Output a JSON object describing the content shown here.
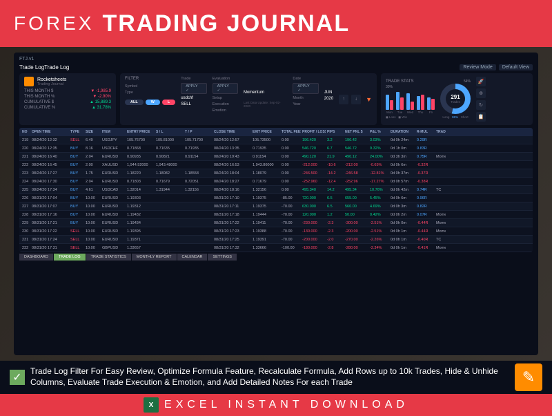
{
  "banner": {
    "forex": "FOREX",
    "title": "TRADING JOURNAL"
  },
  "titlebar": {
    "app": "FTJ.v1",
    "tradelog": "Trade Log",
    "review": "Review Mode",
    "default": "Default View"
  },
  "user": {
    "name": "Rocketsheets",
    "sub": "Trading Journal"
  },
  "stats": {
    "rows": [
      {
        "label": "THIS MONTH $",
        "val": "-1,985.9",
        "cls": "red"
      },
      {
        "label": "THIS MONTH %",
        "val": "-2.90%",
        "cls": "red"
      },
      {
        "label": "CUMULATIVE $",
        "val": "15,889.3",
        "cls": "green"
      },
      {
        "label": "CUMULATIVE %",
        "val": "31.78%",
        "cls": "green"
      }
    ]
  },
  "filter": {
    "title": "FILTER",
    "trade": "Trade",
    "evaluation": "Evaluation",
    "date": "Date",
    "apply": "APPLY ✓",
    "symbol_lbl": "Symbol",
    "symbol": "usdchf",
    "type_lbl": "Type",
    "type": "SELL",
    "setup_lbl": "Setup",
    "setup": "Momentum",
    "exec_lbl": "Execution",
    "emotion_lbl": "Emotion",
    "month_lbl": "Month",
    "month": "JUN",
    "year_lbl": "Year",
    "year": "2020",
    "all": "ALL",
    "w": "W",
    "l": "L",
    "update": "Last Data Update: Sep-02-2020"
  },
  "tradestats": {
    "title": "TRADE STATS",
    "pct": "30%",
    "pct2": "54%",
    "bars": [
      {
        "b": 22,
        "r": 14,
        "d": "Mon"
      },
      {
        "b": 26,
        "r": 18,
        "d": "Tue"
      },
      {
        "b": 24,
        "r": 12,
        "d": "Wed"
      },
      {
        "b": 20,
        "r": 22,
        "d": "Thu"
      },
      {
        "b": 18,
        "r": 16,
        "d": "Fri"
      }
    ],
    "donut_num": "291",
    "donut_lbl": "Trades",
    "long": "Long",
    "short": "Short",
    "winrate": "86%"
  },
  "columns": [
    "NO",
    "OPEN TIME",
    "TYPE",
    "SIZE",
    "ITEM",
    "ENTRY PRICE",
    "S / L",
    "T / P",
    "CLOSE TIME",
    "EXIT PRICE",
    "TOTAL FEES",
    "PROFIT / LOSS",
    "PIPS",
    "NET PNL $",
    "P&L %",
    "DURATION",
    "R-MUL",
    "TRADE SETUP"
  ],
  "rows": [
    {
      "no": "219",
      "ot": "08/24/20 12:32",
      "ty": "SELL",
      "tc": "red",
      "sz": "6.49",
      "it": "USDJPY",
      "ep": "105.76700",
      "sl": "105.81000",
      "tp": "105.71700",
      "ct": "08/24/20 12:57",
      "xp": "105.73500",
      "fe": "0.00",
      "pl": "196.420",
      "pc": "green",
      "pp": "3.2",
      "np": "196.42",
      "nc": "green",
      "pg": "3.03%",
      "pgc": "green",
      "du": "0d 0h 24m",
      "rm": "0.29R",
      "rmc": "blue",
      "ts": ""
    },
    {
      "no": "220",
      "ot": "08/24/20 12:35",
      "ty": "BUY",
      "tc": "blue",
      "sz": "8.16",
      "it": "USDCHF",
      "ep": "0.71868",
      "sl": "0.71635",
      "tp": "0.71935",
      "ct": "08/24/20 13:35",
      "xp": "0.71935",
      "fe": "0.00",
      "pl": "546.720",
      "pc": "green",
      "pp": "6.7",
      "np": "546.72",
      "nc": "green",
      "pg": "9.32%",
      "pgc": "green",
      "du": "0d 1h 0m",
      "rm": "0.83R",
      "rmc": "blue",
      "ts": ""
    },
    {
      "no": "221",
      "ot": "08/24/20 16:40",
      "ty": "BUY",
      "tc": "blue",
      "sz": "2.04",
      "it": "EURUSD",
      "ep": "0.90935",
      "sl": "0.90821",
      "tp": "0.91154",
      "ct": "08/24/20 19:43",
      "xp": "0.91154",
      "fe": "0.00",
      "pl": "490.120",
      "pc": "green",
      "pp": "21.9",
      "np": "490.12",
      "nc": "green",
      "pg": "24.00%",
      "pgc": "green",
      "du": "0d 3h 3m",
      "rm": "0.75R",
      "rmc": "blue",
      "ts": "Momentum"
    },
    {
      "no": "222",
      "ot": "08/24/20 16:45",
      "ty": "BUY",
      "tc": "blue",
      "sz": "2.00",
      "it": "XAUUSD",
      "ep": "1,944.92000",
      "sl": "1,943.48000",
      "tp": "",
      "ct": "08/24/20 16:53",
      "xp": "1,943.86000",
      "fe": "0.00",
      "pl": "-212.000",
      "pc": "red",
      "pp": "-10.6",
      "np": "-212.00",
      "nc": "red",
      "pg": "-0.65%",
      "pgc": "red",
      "du": "0d 0h 6m",
      "rm": "-0.32R",
      "rmc": "red",
      "ts": ""
    },
    {
      "no": "223",
      "ot": "08/24/20 17:27",
      "ty": "BUY",
      "tc": "blue",
      "sz": "1.75",
      "it": "EURUSD",
      "ep": "1.18220",
      "sl": "1.18082",
      "tp": "1.18558",
      "ct": "08/24/20 18:04",
      "xp": "1.18079",
      "fe": "0.00",
      "pl": "-246.500",
      "pc": "red",
      "pp": "-14.2",
      "np": "-246.58",
      "nc": "red",
      "pg": "-12.81%",
      "pgc": "red",
      "du": "0d 0h 37m",
      "rm": "-0.37R",
      "rmc": "red",
      "ts": ""
    },
    {
      "no": "224",
      "ot": "08/24/20 17:30",
      "ty": "BUY",
      "tc": "blue",
      "sz": "2.04",
      "it": "EURUSD",
      "ep": "0.71803",
      "sl": "0.71679",
      "tp": "0.72051",
      "ct": "08/24/20 18:27",
      "xp": "0.71679",
      "fe": "0.00",
      "pl": "-252.960",
      "pc": "red",
      "pp": "-12.4",
      "np": "-252.96",
      "nc": "red",
      "pg": "-17.27%",
      "pgc": "red",
      "du": "0d 0h 57m",
      "rm": "-0.38R",
      "rmc": "red",
      "ts": ""
    },
    {
      "no": "225",
      "ot": "08/24/20 17:34",
      "ty": "BUY",
      "tc": "blue",
      "sz": "4.61",
      "it": "USDCAD",
      "ep": "1.32014",
      "sl": "1.31944",
      "tp": "1.32156",
      "ct": "08/24/20 18:16",
      "xp": "1.32156",
      "fe": "0.00",
      "pl": "495.340",
      "pc": "green",
      "pp": "14.2",
      "np": "495.34",
      "nc": "green",
      "pg": "10.76%",
      "pgc": "green",
      "du": "0d 0h 42m",
      "rm": "0.74R",
      "rmc": "blue",
      "ts": "TC"
    },
    {
      "no": "226",
      "ot": "08/31/20 17:04",
      "ty": "BUY",
      "tc": "blue",
      "sz": "10.00",
      "it": "EURUSD",
      "ep": "1.19303",
      "sl": "",
      "tp": "",
      "ct": "08/31/20 17:10",
      "xp": "1.19375",
      "fe": "-85.00",
      "pl": "720.000",
      "pc": "green",
      "pp": "6.5",
      "np": "655.00",
      "nc": "green",
      "pg": "5.45%",
      "pgc": "green",
      "du": "0d 0h 6m",
      "rm": "0.96R",
      "rmc": "blue",
      "ts": ""
    },
    {
      "no": "227",
      "ot": "08/31/20 17:07",
      "ty": "BUY",
      "tc": "blue",
      "sz": "10.00",
      "it": "EURUSD",
      "ep": "1.19312",
      "sl": "",
      "tp": "",
      "ct": "08/31/20 17:11",
      "xp": "1.19375",
      "fe": "-70.00",
      "pl": "630.000",
      "pc": "green",
      "pp": "6.5",
      "np": "560.00",
      "nc": "green",
      "pg": "4.69%",
      "pgc": "green",
      "du": "0d 0h 3m",
      "rm": "0.82R",
      "rmc": "blue",
      "ts": ""
    },
    {
      "no": "228",
      "ot": "08/31/20 17:16",
      "ty": "BUY",
      "tc": "blue",
      "sz": "10.00",
      "it": "EURUSD",
      "ep": "1.19432",
      "sl": "",
      "tp": "",
      "ct": "08/31/20 17:18",
      "xp": "1.19444",
      "fe": "-70.00",
      "pl": "120.000",
      "pc": "green",
      "pp": "1.2",
      "np": "50.00",
      "nc": "green",
      "pg": "0.42%",
      "pgc": "green",
      "du": "0d 0h 2m",
      "rm": "0.07R",
      "rmc": "blue",
      "ts": "Momentum"
    },
    {
      "no": "229",
      "ot": "08/31/20 17:21",
      "ty": "BUY",
      "tc": "blue",
      "sz": "10.00",
      "it": "EURUSD",
      "ep": "1.19434",
      "sl": "",
      "tp": "",
      "ct": "08/31/20 17:22",
      "xp": "1.19411",
      "fe": "-70.00",
      "pl": "-230.000",
      "pc": "red",
      "pp": "-2.3",
      "np": "-300.00",
      "nc": "red",
      "pg": "-2.51%",
      "pgc": "red",
      "du": "0d 0h 0m",
      "rm": "-0.44R",
      "rmc": "red",
      "ts": "Momentum"
    },
    {
      "no": "230",
      "ot": "08/31/20 17:22",
      "ty": "SELL",
      "tc": "red",
      "sz": "10.00",
      "it": "EURUSD",
      "ep": "1.19395",
      "sl": "",
      "tp": "",
      "ct": "08/31/20 17:23",
      "xp": "1.19388",
      "fe": "-70.00",
      "pl": "-130.000",
      "pc": "red",
      "pp": "-2.3",
      "np": "-200.00",
      "nc": "red",
      "pg": "-2.51%",
      "pgc": "red",
      "du": "0d 0h 1m",
      "rm": "-0.44R",
      "rmc": "red",
      "ts": "Momentum"
    },
    {
      "no": "231",
      "ot": "08/31/20 17:24",
      "ty": "SELL",
      "tc": "red",
      "sz": "10.00",
      "it": "EURUSD",
      "ep": "1.19371",
      "sl": "",
      "tp": "",
      "ct": "08/31/20 17:25",
      "xp": "1.19391",
      "fe": "-70.00",
      "pl": "-200.000",
      "pc": "red",
      "pp": "-2.0",
      "np": "-270.00",
      "nc": "red",
      "pg": "-2.26%",
      "pgc": "red",
      "du": "0d 0h 1m",
      "rm": "-0.40R",
      "rmc": "red",
      "ts": "TC"
    },
    {
      "no": "232",
      "ot": "08/31/20 17:31",
      "ty": "SELL",
      "tc": "red",
      "sz": "10.00",
      "it": "GBPUSD",
      "ep": "1.33657",
      "sl": "",
      "tp": "",
      "ct": "08/31/20 17:32",
      "xp": "1.33666",
      "fe": "-100.00",
      "pl": "-180.000",
      "pc": "red",
      "pp": "-2.8",
      "np": "-280.00",
      "nc": "red",
      "pg": "-2.34%",
      "pgc": "red",
      "du": "0d 0h 1m",
      "rm": "-0.41R",
      "rmc": "red",
      "ts": "Momentum"
    }
  ],
  "tabs": [
    "DASHBOARD",
    "TRADE LOG",
    "TRADE STATISTICS",
    "MONTHLY REPORT",
    "CALENDAR",
    "SETTINGS"
  ],
  "active_tab": 1,
  "feature": "Trade Log Filter For Easy Review, Optimize Formula Feature, Recalculate Formula, Add Rows up to 10k Trades, Hide & Unhide Columns, Evaluate Trade Execution & Emotion, and Add Detailed Notes For each Trade",
  "excel": "EXCEL  INSTANT  DOWNLOAD"
}
